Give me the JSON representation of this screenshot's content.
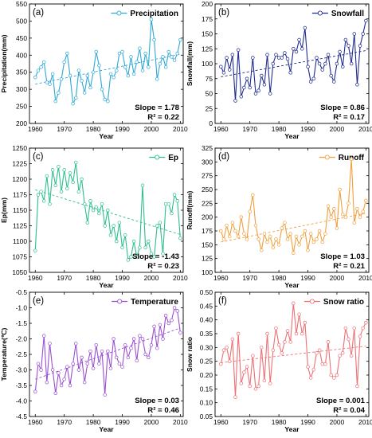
{
  "chart_data": [
    {
      "type": "line",
      "panel_label": "(a)",
      "legend": "Precipitation",
      "ylabel": "Precipitation(mm)",
      "xlabel": "Year",
      "color": "#2ea8d6",
      "ylim": [
        200,
        550
      ],
      "yticks": [
        200,
        250,
        300,
        350,
        400,
        450,
        500,
        550
      ],
      "xlim": [
        1958,
        2011
      ],
      "xticks": [
        1960,
        1970,
        1980,
        1990,
        2000,
        2010
      ],
      "slope_text": "Slope = 1.78",
      "r2_text": "R² = 0.22",
      "trend": [
        [
          1960,
          315
        ],
        [
          2010,
          403
        ]
      ],
      "x": [
        1960,
        1961,
        1962,
        1963,
        1964,
        1965,
        1966,
        1967,
        1968,
        1969,
        1970,
        1971,
        1972,
        1973,
        1974,
        1975,
        1976,
        1977,
        1978,
        1979,
        1980,
        1981,
        1982,
        1983,
        1984,
        1985,
        1986,
        1987,
        1988,
        1989,
        1990,
        1991,
        1992,
        1993,
        1994,
        1995,
        1996,
        1997,
        1998,
        1999,
        2000,
        2001,
        2002,
        2003,
        2004,
        2005,
        2006,
        2007,
        2008,
        2009,
        2010
      ],
      "values": [
        335,
        355,
        365,
        380,
        320,
        315,
        345,
        265,
        290,
        330,
        380,
        405,
        340,
        258,
        275,
        355,
        325,
        290,
        340,
        305,
        350,
        410,
        370,
        300,
        270,
        265,
        345,
        335,
        355,
        405,
        410,
        365,
        340,
        395,
        345,
        380,
        420,
        355,
        405,
        365,
        505,
        445,
        330,
        375,
        395,
        365,
        410,
        395,
        385,
        405,
        445
      ]
    },
    {
      "type": "line",
      "panel_label": "(b)",
      "legend": "Snowfall",
      "ylabel": "Snowfall(mm)",
      "xlabel": "Year",
      "color": "#1f2b8e",
      "ylim": [
        0,
        200
      ],
      "yticks": [
        0,
        25,
        50,
        75,
        100,
        125,
        150,
        175,
        200
      ],
      "xlim": [
        1958,
        2011
      ],
      "xticks": [
        1960,
        1970,
        1980,
        1990,
        2000,
        2010
      ],
      "slope_text": "Slope = 0.86",
      "r2_text": "R² = 0.17",
      "trend": [
        [
          1960,
          78
        ],
        [
          2010,
          122
        ]
      ],
      "x": [
        1960,
        1961,
        1962,
        1963,
        1964,
        1965,
        1966,
        1967,
        1968,
        1969,
        1970,
        1971,
        1972,
        1973,
        1974,
        1975,
        1976,
        1977,
        1978,
        1979,
        1980,
        1981,
        1982,
        1983,
        1984,
        1985,
        1986,
        1987,
        1988,
        1989,
        1990,
        1991,
        1992,
        1993,
        1994,
        1995,
        1996,
        1997,
        1998,
        1999,
        2000,
        2001,
        2002,
        2003,
        2004,
        2005,
        2006,
        2007,
        2008,
        2009,
        2010
      ],
      "values": [
        95,
        85,
        110,
        90,
        115,
        38,
        123,
        45,
        60,
        75,
        60,
        110,
        50,
        55,
        80,
        65,
        115,
        50,
        100,
        115,
        110,
        110,
        118,
        108,
        85,
        125,
        120,
        140,
        125,
        160,
        95,
        70,
        75,
        110,
        100,
        90,
        100,
        115,
        80,
        70,
        100,
        120,
        95,
        140,
        130,
        100,
        150,
        65,
        130,
        150,
        172
      ]
    },
    {
      "type": "line",
      "panel_label": "(c)",
      "legend": "Ep",
      "ylabel": "Ep(mm)",
      "xlabel": "Year",
      "color": "#2dbf8e",
      "ylim": [
        1050,
        1250
      ],
      "yticks": [
        1050,
        1075,
        1100,
        1125,
        1150,
        1175,
        1200,
        1225,
        1250
      ],
      "xlim": [
        1958,
        2011
      ],
      "xticks": [
        1960,
        1970,
        1980,
        1990,
        2000,
        2010
      ],
      "slope_text": "Slope = -1.43",
      "r2_text": "R² = 0.23",
      "trend": [
        [
          1960,
          1183
        ],
        [
          2010,
          1111
        ]
      ],
      "x": [
        1960,
        1961,
        1962,
        1963,
        1964,
        1965,
        1966,
        1967,
        1968,
        1969,
        1970,
        1971,
        1972,
        1973,
        1974,
        1975,
        1976,
        1977,
        1978,
        1979,
        1980,
        1981,
        1982,
        1983,
        1984,
        1985,
        1986,
        1987,
        1988,
        1989,
        1990,
        1991,
        1992,
        1993,
        1994,
        1995,
        1996,
        1997,
        1998,
        1999,
        2000,
        2001,
        2002,
        2003,
        2004,
        2005,
        2006,
        2007,
        2008,
        2009,
        2010
      ],
      "values": [
        1085,
        1175,
        1180,
        1165,
        1205,
        1160,
        1215,
        1190,
        1220,
        1180,
        1215,
        1185,
        1210,
        1195,
        1227,
        1180,
        1200,
        1160,
        1130,
        1165,
        1150,
        1155,
        1145,
        1160,
        1125,
        1150,
        1110,
        1125,
        1100,
        1130,
        1090,
        1110,
        1070,
        1075,
        1100,
        1075,
        1090,
        1190,
        1090,
        1100,
        1080,
        1075,
        1125,
        1130,
        1080,
        1160,
        1160,
        1145,
        1175,
        1165,
        1105
      ]
    },
    {
      "type": "line",
      "panel_label": "(d)",
      "legend": "Runoff",
      "ylabel": "Runoff(mm)",
      "xlabel": "Year",
      "color": "#f0a03c",
      "ylim": [
        100,
        325
      ],
      "yticks": [
        100,
        125,
        150,
        175,
        200,
        225,
        250,
        275,
        300,
        325
      ],
      "xlim": [
        1958,
        2011
      ],
      "xticks": [
        1960,
        1970,
        1980,
        1990,
        2000,
        2010
      ],
      "slope_text": "Slope = 1.03",
      "r2_text": "R² = 0.21",
      "trend": [
        [
          1960,
          155
        ],
        [
          2010,
          207
        ]
      ],
      "x": [
        1960,
        1961,
        1962,
        1963,
        1964,
        1965,
        1966,
        1967,
        1968,
        1969,
        1970,
        1971,
        1972,
        1973,
        1974,
        1975,
        1976,
        1977,
        1978,
        1979,
        1980,
        1981,
        1982,
        1983,
        1984,
        1985,
        1986,
        1987,
        1988,
        1989,
        1990,
        1991,
        1992,
        1993,
        1994,
        1995,
        1996,
        1997,
        1998,
        1999,
        2000,
        2001,
        2002,
        2003,
        2004,
        2005,
        2006,
        2007,
        2008,
        2009,
        2010
      ],
      "values": [
        175,
        160,
        185,
        165,
        190,
        175,
        165,
        200,
        170,
        160,
        210,
        240,
        185,
        160,
        140,
        170,
        155,
        165,
        145,
        160,
        150,
        180,
        190,
        160,
        170,
        135,
        165,
        150,
        165,
        175,
        140,
        170,
        155,
        160,
        175,
        155,
        170,
        220,
        200,
        215,
        180,
        250,
        205,
        200,
        225,
        305,
        190,
        215,
        200,
        210,
        230
      ]
    },
    {
      "type": "line",
      "panel_label": "(e)",
      "legend": "Temperature",
      "ylabel": "Temperature(℃)",
      "xlabel": "Year",
      "color": "#9a4fd0",
      "ylim": [
        -4.5,
        -0.5
      ],
      "yticks": [
        -4.5,
        -4.0,
        -3.5,
        -3.0,
        -2.5,
        -2.0,
        -1.5,
        -1.0,
        -0.5
      ],
      "ytick_labels": [
        "-4.5",
        "-4.0",
        "-3.5",
        "-3.0",
        "-2.5",
        "-2.0",
        "-1.5",
        "-1.0",
        "-0.5"
      ],
      "xlim": [
        1958,
        2011
      ],
      "xticks": [
        1960,
        1970,
        1980,
        1990,
        2000,
        2010
      ],
      "slope_text": "Slope = 0.03",
      "r2_text": "R² = 0.46",
      "trend": [
        [
          1960,
          -3.3
        ],
        [
          2010,
          -1.65
        ]
      ],
      "x": [
        1960,
        1961,
        1962,
        1963,
        1964,
        1965,
        1966,
        1967,
        1968,
        1969,
        1970,
        1971,
        1972,
        1973,
        1974,
        1975,
        1976,
        1977,
        1978,
        1979,
        1980,
        1981,
        1982,
        1983,
        1984,
        1985,
        1986,
        1987,
        1988,
        1989,
        1990,
        1991,
        1992,
        1993,
        1994,
        1995,
        1996,
        1997,
        1998,
        1999,
        2000,
        2001,
        2002,
        2003,
        2004,
        2005,
        2006,
        2007,
        2008,
        2009,
        2010
      ],
      "values": [
        -3.7,
        -2.8,
        -3.0,
        -1.9,
        -3.4,
        -2.15,
        -3.0,
        -3.75,
        -3.1,
        -3.5,
        -3.3,
        -2.9,
        -3.5,
        -2.8,
        -2.15,
        -3.0,
        -2.6,
        -3.4,
        -2.8,
        -2.4,
        -2.95,
        -2.2,
        -2.8,
        -2.4,
        -3.8,
        -2.4,
        -2.95,
        -2.0,
        -2.6,
        -2.8,
        -2.9,
        -2.2,
        -2.6,
        -2.3,
        -2.0,
        -2.7,
        -1.9,
        -2.0,
        -2.5,
        -2.6,
        -2.2,
        -1.6,
        -2.3,
        -1.55,
        -2.0,
        -1.25,
        -1.5,
        -1.4,
        -1.0,
        -1.1,
        -1.8
      ]
    },
    {
      "type": "line",
      "panel_label": "(f)",
      "legend": "Snow ratio",
      "ylabel": "Snow ratio",
      "xlabel": "Year",
      "color": "#ef6f74",
      "ylim": [
        0.05,
        0.5
      ],
      "yticks": [
        0.05,
        0.1,
        0.15,
        0.2,
        0.25,
        0.3,
        0.35,
        0.4,
        0.45,
        0.5
      ],
      "ytick_labels": [
        "0.05",
        "0.10",
        "0.15",
        "0.20",
        "0.25",
        "0.30",
        "0.35",
        "0.40",
        "0.45",
        "0.50"
      ],
      "xlim": [
        1958,
        2011
      ],
      "xticks": [
        1960,
        1970,
        1980,
        1990,
        2000,
        2010
      ],
      "slope_text": "Slope = 0.001",
      "r2_text": "R² = 0.04",
      "trend": [
        [
          1960,
          0.245
        ],
        [
          2010,
          0.305
        ]
      ],
      "x": [
        1960,
        1961,
        1962,
        1963,
        1964,
        1965,
        1966,
        1967,
        1968,
        1969,
        1970,
        1971,
        1972,
        1973,
        1974,
        1975,
        1976,
        1977,
        1978,
        1979,
        1980,
        1981,
        1982,
        1983,
        1984,
        1985,
        1986,
        1987,
        1988,
        1989,
        1990,
        1991,
        1992,
        1993,
        1994,
        1995,
        1996,
        1997,
        1998,
        1999,
        2000,
        2001,
        2002,
        2003,
        2004,
        2005,
        2006,
        2007,
        2008,
        2009,
        2010
      ],
      "values": [
        0.24,
        0.29,
        0.3,
        0.25,
        0.33,
        0.12,
        0.35,
        0.17,
        0.21,
        0.23,
        0.16,
        0.27,
        0.15,
        0.16,
        0.3,
        0.18,
        0.35,
        0.17,
        0.29,
        0.37,
        0.31,
        0.28,
        0.32,
        0.36,
        0.32,
        0.46,
        0.35,
        0.42,
        0.35,
        0.39,
        0.23,
        0.19,
        0.22,
        0.28,
        0.29,
        0.24,
        0.24,
        0.32,
        0.2,
        0.19,
        0.2,
        0.27,
        0.28,
        0.37,
        0.33,
        0.27,
        0.37,
        0.16,
        0.34,
        0.37,
        0.39
      ]
    }
  ]
}
